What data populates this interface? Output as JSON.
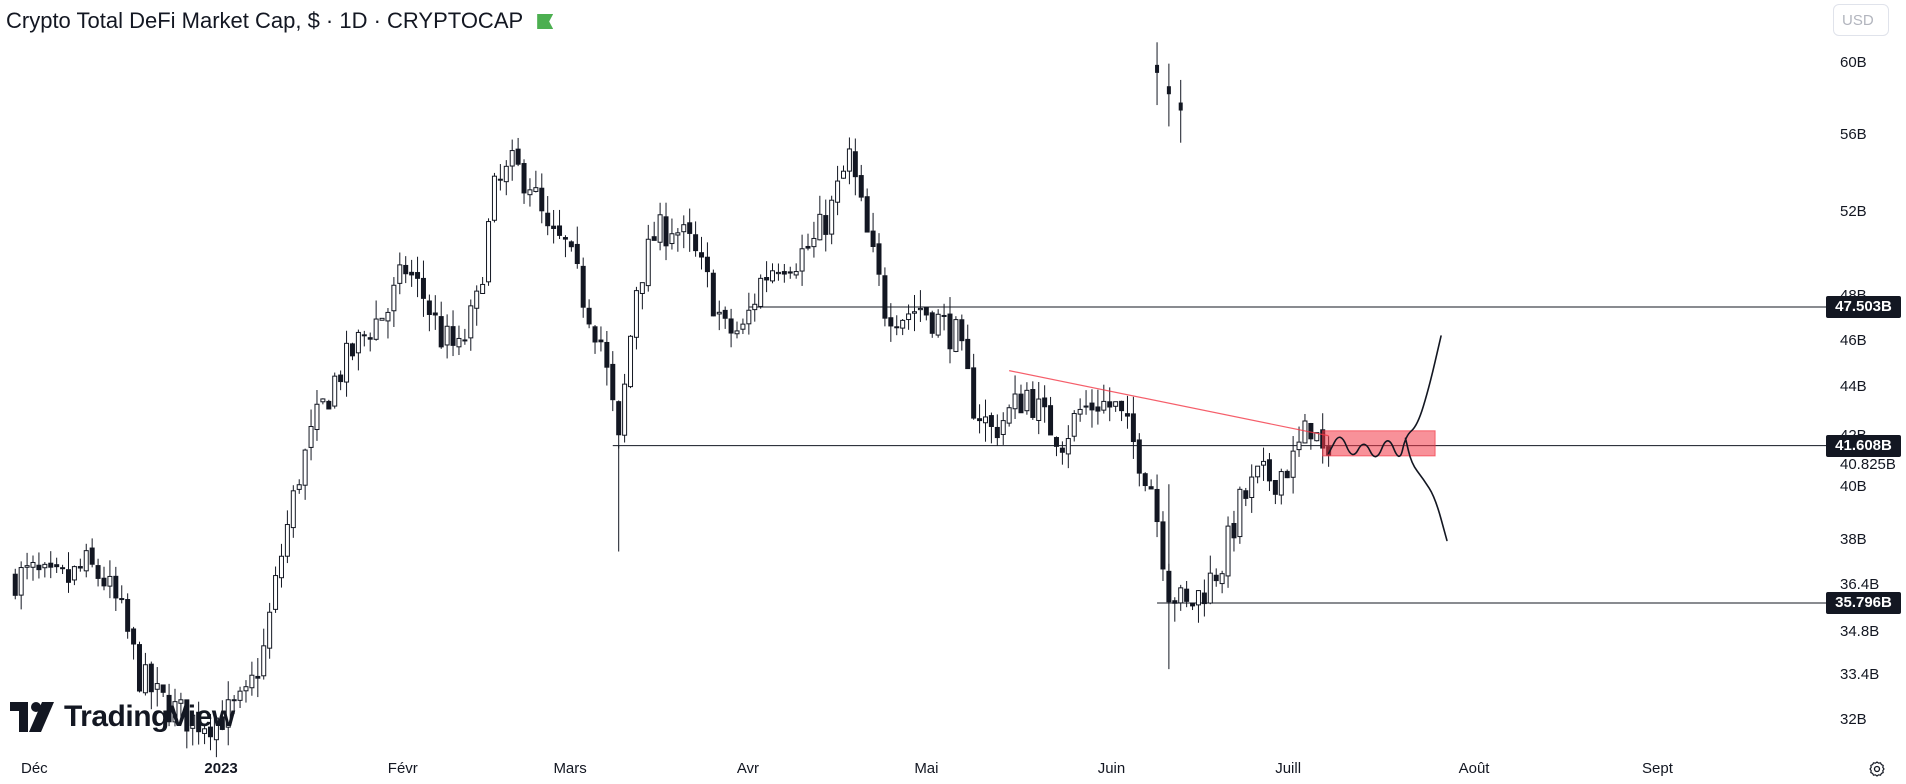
{
  "header": {
    "title": "Crypto Total DeFi Market Cap, $ · 1D · CRYPTOCAP",
    "currency_button": "USD",
    "flag_color": "#4caf50"
  },
  "branding": {
    "logo_text": "TradingView"
  },
  "chart_data": {
    "type": "candlestick",
    "title": "Crypto Total DeFi Market Cap, $ · 1D · CRYPTOCAP",
    "y_axis": {
      "ticks": [
        "60B",
        "56B",
        "52B",
        "48B",
        "46B",
        "44B",
        "42B",
        "40B",
        "38B",
        "36.4B",
        "34.8B",
        "33.4B",
        "32B"
      ],
      "tick_values": [
        60,
        56,
        52,
        48,
        46,
        44,
        42,
        40,
        38,
        36.4,
        34.8,
        33.4,
        32
      ],
      "range": [
        31.4,
        62.5
      ],
      "scale": "log",
      "unit": "B USD"
    },
    "x_axis": {
      "labels": [
        "Déc",
        "2023",
        "Févr",
        "Mars",
        "Avr",
        "Mai",
        "Juin",
        "Juill",
        "Août",
        "Sept"
      ],
      "label_dates": [
        "2022-12-01",
        "2023-01-01",
        "2023-02-01",
        "2023-03-01",
        "2023-04-01",
        "2023-05-01",
        "2023-06-01",
        "2023-07-01",
        "2023-08-01",
        "2023-09-01"
      ],
      "bold_labels": [
        "2023"
      ]
    },
    "horizontal_levels": [
      {
        "value": 47.503,
        "label": "47.503B",
        "from_date": "2023-04-01"
      },
      {
        "value": 41.608,
        "label": "41.608B",
        "from_date": "2023-03-09"
      },
      {
        "value": 35.796,
        "label": "35.796B",
        "from_date": "2023-06-09"
      }
    ],
    "last_value": {
      "value": 40.825,
      "label": "40.825B"
    },
    "trendline": {
      "from_date": "2023-05-15",
      "from_value": 44.7,
      "to_date": "2023-07-08",
      "to_value": 42.0,
      "color": "#f23645"
    },
    "zone": {
      "from_date": "2023-07-07",
      "to_date": "2023-07-26",
      "top": 42.2,
      "bottom": 41.2,
      "color": "#f23645"
    },
    "candles": [
      [
        "2022-11-28",
        36.7
      ],
      [
        "2022-12-01",
        36.8
      ],
      [
        "2022-12-04",
        36.5
      ],
      [
        "2022-12-07",
        36.6
      ],
      [
        "2022-12-10",
        37.1
      ],
      [
        "2022-12-13",
        36.6
      ],
      [
        "2022-12-16",
        35.4
      ],
      [
        "2022-12-19",
        33.4
      ],
      [
        "2022-12-22",
        32.7
      ],
      [
        "2022-12-25",
        32.3
      ],
      [
        "2022-12-28",
        32.0
      ],
      [
        "2022-12-31",
        32.0
      ],
      [
        "2023-01-03",
        32.2
      ],
      [
        "2023-01-06",
        32.6
      ],
      [
        "2023-01-09",
        34.2
      ],
      [
        "2023-01-12",
        37.5
      ],
      [
        "2023-01-15",
        40.5
      ],
      [
        "2023-01-18",
        42.6
      ],
      [
        "2023-01-21",
        44.3
      ],
      [
        "2023-01-24",
        45.5
      ],
      [
        "2023-01-27",
        46.6
      ],
      [
        "2023-01-30",
        47.4
      ],
      [
        "2023-02-02",
        49.3
      ],
      [
        "2023-02-05",
        48.0
      ],
      [
        "2023-02-08",
        46.2
      ],
      [
        "2023-02-11",
        45.5
      ],
      [
        "2023-02-14",
        47.6
      ],
      [
        "2023-02-17",
        53.0
      ],
      [
        "2023-02-20",
        54.3
      ],
      [
        "2023-02-23",
        53.6
      ],
      [
        "2023-02-26",
        50.8
      ],
      [
        "2023-03-01",
        50.3
      ],
      [
        "2023-03-04",
        48.0
      ],
      [
        "2023-03-07",
        46.0
      ],
      [
        "2023-03-10",
        41.6
      ],
      [
        "2023-03-13",
        48.5
      ],
      [
        "2023-03-16",
        50.8
      ],
      [
        "2023-03-19",
        51.4
      ],
      [
        "2023-03-22",
        50.4
      ],
      [
        "2023-03-25",
        48.6
      ],
      [
        "2023-03-28",
        46.4
      ],
      [
        "2023-03-31",
        46.4
      ],
      [
        "2023-04-03",
        48.7
      ],
      [
        "2023-04-06",
        49.7
      ],
      [
        "2023-04-09",
        49.8
      ],
      [
        "2023-04-12",
        50.5
      ],
      [
        "2023-04-15",
        52.2
      ],
      [
        "2023-04-18",
        54.8
      ],
      [
        "2023-04-21",
        50.8
      ],
      [
        "2023-04-24",
        47.5
      ],
      [
        "2023-04-27",
        47.2
      ],
      [
        "2023-04-30",
        47.5
      ],
      [
        "2023-05-03",
        46.9
      ],
      [
        "2023-05-06",
        46.2
      ],
      [
        "2023-05-09",
        43.3
      ],
      [
        "2023-05-12",
        42.2
      ],
      [
        "2023-05-15",
        42.9
      ],
      [
        "2023-05-18",
        43.8
      ],
      [
        "2023-05-21",
        42.6
      ],
      [
        "2023-05-24",
        41.9
      ],
      [
        "2023-05-27",
        43.0
      ],
      [
        "2023-05-30",
        43.4
      ],
      [
        "2023-06-02",
        43.1
      ],
      [
        "2023-06-05",
        41.7
      ],
      [
        "2023-06-08",
        40.1
      ],
      [
        "2023-06-11",
        36.3
      ],
      [
        "2023-06-14",
        35.6
      ],
      [
        "2023-06-17",
        36.3
      ],
      [
        "2023-06-20",
        37.2
      ],
      [
        "2023-06-23",
        39.3
      ],
      [
        "2023-06-26",
        40.3
      ],
      [
        "2023-06-29",
        40.4
      ],
      [
        "2023-07-02",
        41.0
      ],
      [
        "2023-07-05",
        42.5
      ],
      [
        "2023-07-08",
        40.6
      ]
    ],
    "outlier_candles": [
      [
        "2023-06-09",
        59.4
      ],
      [
        "2023-06-11",
        58.2
      ],
      [
        "2023-06-13",
        57.3
      ]
    ],
    "drawings": [
      {
        "type": "freehand",
        "description": "projected price path",
        "points_date_value": [
          [
            "2023-07-08",
            41.3
          ],
          [
            "2023-07-10",
            42.2
          ],
          [
            "2023-07-12",
            41.0
          ],
          [
            "2023-07-14",
            41.9
          ],
          [
            "2023-07-16",
            40.9
          ],
          [
            "2023-07-18",
            42.1
          ],
          [
            "2023-07-20",
            40.9
          ],
          [
            "2023-07-21",
            42.0
          ],
          [
            "2023-07-23",
            42.4
          ],
          [
            "2023-07-25",
            44.0
          ],
          [
            "2023-07-27",
            46.2
          ]
        ]
      },
      {
        "type": "freehand",
        "description": "alternative projected path",
        "points_date_value": [
          [
            "2023-07-21",
            41.9
          ],
          [
            "2023-07-22",
            40.9
          ],
          [
            "2023-07-24",
            40.3
          ],
          [
            "2023-07-26",
            39.6
          ],
          [
            "2023-07-28",
            38.0
          ]
        ]
      }
    ],
    "grid": false,
    "up_color": "#ffffff",
    "down_color": "#131722"
  }
}
